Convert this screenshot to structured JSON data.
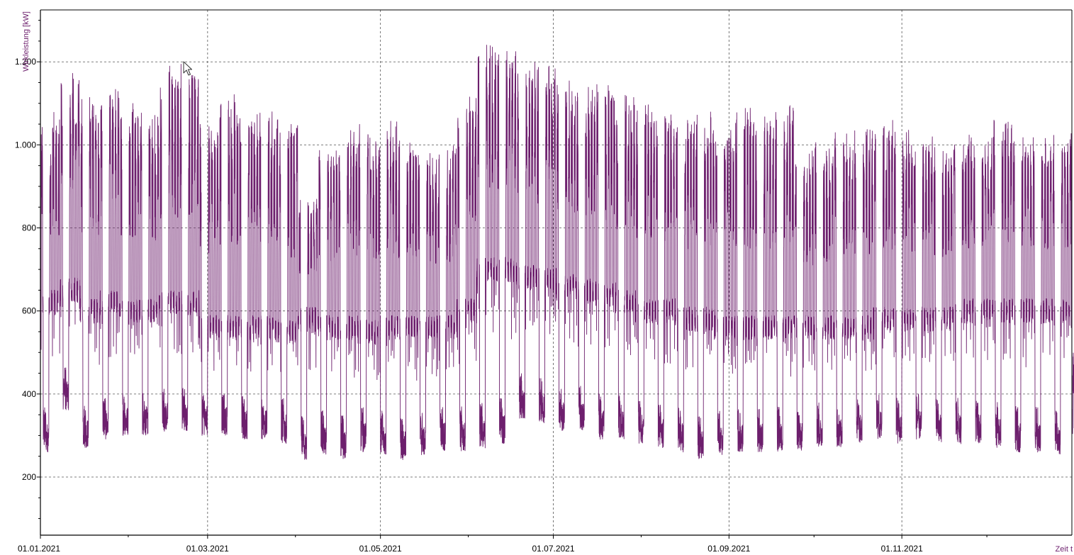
{
  "chart_data": {
    "type": "line",
    "title": "",
    "xlabel": "Zeit t",
    "ylabel": "Wirkleistung [kW]",
    "x_range": [
      "01.01.2021",
      "31.12.2021"
    ],
    "xlim_days": [
      0,
      364
    ],
    "ylim": [
      60,
      1325
    ],
    "y_ticks": [
      200,
      400,
      600,
      800,
      1000,
      1200
    ],
    "y_tick_labels": [
      "200",
      "400",
      "600",
      "800",
      "1.000",
      "1.200"
    ],
    "x_ticks": [
      "01.01.2021",
      "01.03.2021",
      "01.05.2021",
      "01.07.2021",
      "01.09.2021",
      "01.11.2021"
    ],
    "grid": true,
    "series": [
      {
        "color": "#6d1f6d",
        "resolution": "hourly",
        "weekly_peak_kw": [
          1080,
          1180,
          1120,
          1150,
          1100,
          1080,
          1200,
          1195,
          1060,
          1130,
          1100,
          1080,
          1060,
          870,
          1000,
          1040,
          1050,
          1060,
          1010,
          980,
          1010,
          1120,
          1250,
          1250,
          1200,
          1190,
          1160,
          1140,
          1150,
          1120,
          1100,
          1080,
          1060,
          1080,
          1050,
          1090,
          1080,
          1100,
          990,
          1010,
          1030,
          1040,
          1060,
          1040,
          1020,
          1010,
          1030,
          1020,
          1060,
          1030,
          1020,
          1030,
          500
        ],
        "weekly_base_kw": [
          260,
          360,
          270,
          290,
          300,
          300,
          310,
          310,
          300,
          300,
          290,
          290,
          280,
          240,
          250,
          240,
          260,
          250,
          240,
          250,
          260,
          260,
          270,
          280,
          340,
          330,
          310,
          310,
          290,
          290,
          280,
          270,
          260,
          240,
          250,
          260,
          260,
          260,
          260,
          270,
          270,
          280,
          290,
          280,
          290,
          280,
          280,
          280,
          270,
          260,
          260,
          250,
          250
        ],
        "weekly_offpeak_kw": [
          620,
          650,
          600,
          620,
          600,
          600,
          620,
          620,
          560,
          560,
          560,
          560,
          550,
          580,
          560,
          560,
          550,
          560,
          560,
          560,
          560,
          600,
          700,
          700,
          680,
          680,
          660,
          650,
          640,
          620,
          600,
          600,
          580,
          580,
          560,
          560,
          560,
          560,
          560,
          560,
          560,
          560,
          580,
          580,
          580,
          580,
          600,
          600,
          600,
          600,
          600,
          600,
          340
        ]
      }
    ]
  },
  "overlay": {
    "cursor_icon": "mouse-pointer-icon"
  }
}
